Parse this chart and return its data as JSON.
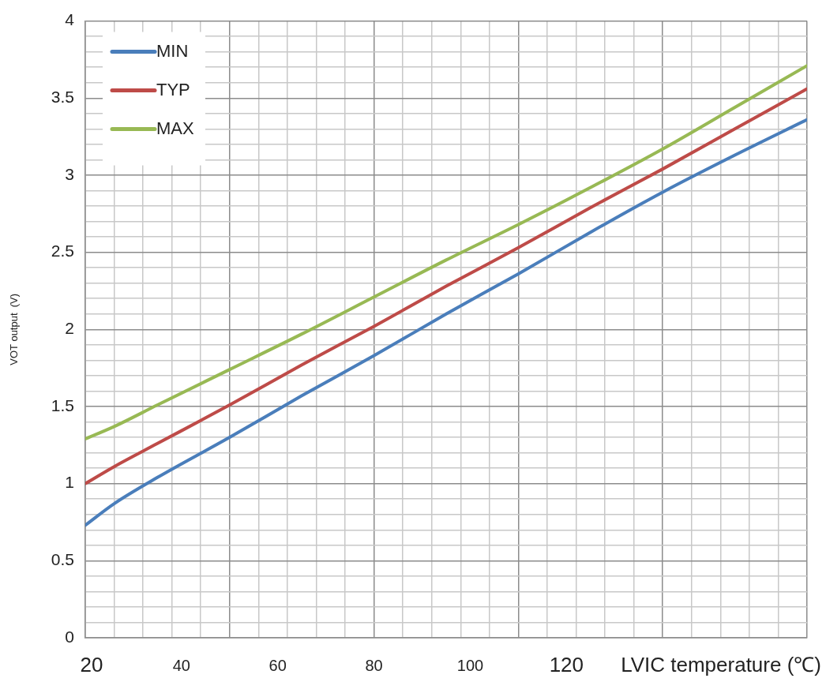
{
  "chart_data": {
    "type": "line",
    "xlabel": "LVIC temperature (℃)",
    "ylabel": "VOT output  (V)",
    "x": [
      20,
      26,
      35,
      50,
      65,
      80,
      95,
      110,
      125,
      140,
      155,
      170
    ],
    "series": [
      {
        "name": "MIN",
        "color": "#4a7ebb",
        "values": [
          0.73,
          0.87,
          1.04,
          1.3,
          1.57,
          1.83,
          2.1,
          2.36,
          2.63,
          2.89,
          3.13,
          3.36
        ]
      },
      {
        "name": "TYP",
        "color": "#be4b48",
        "values": [
          1.0,
          1.11,
          1.26,
          1.51,
          1.77,
          2.02,
          2.28,
          2.53,
          2.79,
          3.04,
          3.3,
          3.56
        ]
      },
      {
        "name": "MAX",
        "color": "#98b954",
        "values": [
          1.29,
          1.37,
          1.51,
          1.74,
          1.97,
          2.21,
          2.45,
          2.68,
          2.92,
          3.17,
          3.44,
          3.71
        ]
      }
    ],
    "xlim": [
      20,
      170
    ],
    "xticks": [
      {
        "value": 20,
        "label": null
      },
      {
        "value": 26,
        "label": null
      },
      {
        "value": 32,
        "label": null
      },
      {
        "value": 38,
        "label": null
      },
      {
        "value": 44,
        "label": null
      },
      {
        "value": 50,
        "label": null
      },
      {
        "value": 56,
        "label": null
      },
      {
        "value": 62,
        "label": null
      },
      {
        "value": 68,
        "label": null
      },
      {
        "value": 74,
        "label": null
      },
      {
        "value": 80,
        "label": null
      },
      {
        "value": 86,
        "label": null
      },
      {
        "value": 92,
        "label": null
      },
      {
        "value": 98,
        "label": null
      },
      {
        "value": 104,
        "label": null
      },
      {
        "value": 110,
        "label": null
      },
      {
        "value": 116,
        "label": null
      },
      {
        "value": 122,
        "label": null
      },
      {
        "value": 128,
        "label": null
      },
      {
        "value": 134,
        "label": null
      },
      {
        "value": 140,
        "label": null
      },
      {
        "value": 146,
        "label": null
      },
      {
        "value": 152,
        "label": null
      },
      {
        "value": 158,
        "label": null
      },
      {
        "value": 164,
        "label": null
      },
      {
        "value": 170,
        "label": null
      },
      20,
      40,
      60,
      80,
      100,
      120
    ],
    "ylim": [
      0,
      4
    ],
    "yticks": [
      0,
      {
        "value": 0.1,
        "label": null
      },
      {
        "value": 0.2,
        "label": null
      },
      {
        "value": 0.3,
        "label": null
      },
      {
        "value": 0.4,
        "label": null
      },
      0.5,
      {
        "value": 0.6,
        "label": null
      },
      {
        "value": 0.7,
        "label": null
      },
      {
        "value": 0.8,
        "label": null
      },
      {
        "value": 0.9,
        "label": null
      },
      1,
      {
        "value": 1.1,
        "label": null
      },
      {
        "value": 1.2,
        "label": null
      },
      {
        "value": 1.3,
        "label": null
      },
      {
        "value": 1.4,
        "label": null
      },
      1.5,
      {
        "value": 1.6,
        "label": null
      },
      {
        "value": 1.7,
        "label": null
      },
      {
        "value": 1.8,
        "label": null
      },
      {
        "value": 1.9,
        "label": null
      },
      2,
      {
        "value": 2.1,
        "label": null
      },
      {
        "value": 2.2,
        "label": null
      },
      {
        "value": 2.3,
        "label": null
      },
      {
        "value": 2.4,
        "label": null
      },
      2.5,
      {
        "value": 2.6,
        "label": null
      },
      {
        "value": 2.7,
        "label": null
      },
      {
        "value": 2.8,
        "label": null
      },
      {
        "value": 2.9,
        "label": null
      },
      3,
      {
        "value": 3.1,
        "label": null
      },
      {
        "value": 3.2,
        "label": null
      },
      {
        "value": 3.3,
        "label": null
      },
      {
        "value": 3.4,
        "label": null
      },
      3.5,
      {
        "value": 3.6,
        "label": null
      },
      {
        "value": 3.7,
        "label": null
      },
      {
        "value": 3.8,
        "label": null
      },
      {
        "value": 3.9,
        "label": null
      },
      4
    ],
    "grid": true,
    "legend": "top left",
    "marker": "none",
    "line_style": "solid"
  }
}
